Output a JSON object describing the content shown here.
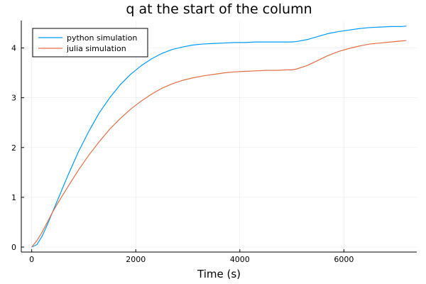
{
  "chart_data": {
    "type": "line",
    "title": "q at the start of the column",
    "xlabel": "Time (s)",
    "ylabel": "",
    "xlim": [
      -200,
      7400
    ],
    "ylim": [
      -0.1,
      4.55
    ],
    "xticks": [
      0,
      2000,
      4000,
      6000
    ],
    "yticks": [
      0,
      1,
      2,
      3,
      4
    ],
    "grid": true,
    "legend_position": "top-left",
    "series": [
      {
        "name": "python simulation",
        "color": "#009af9",
        "x": [
          0,
          100,
          200,
          300,
          400,
          500,
          700,
          900,
          1100,
          1300,
          1500,
          1700,
          1900,
          2100,
          2300,
          2500,
          2700,
          2900,
          3100,
          3300,
          3500,
          3700,
          3900,
          4100,
          4300,
          4500,
          4700,
          4900,
          5000,
          5100,
          5300,
          5500,
          5700,
          5900,
          6100,
          6300,
          6500,
          6700,
          6900,
          7100,
          7200
        ],
        "y": [
          0.0,
          0.05,
          0.22,
          0.45,
          0.7,
          0.95,
          1.45,
          1.92,
          2.33,
          2.7,
          3.0,
          3.26,
          3.47,
          3.64,
          3.78,
          3.89,
          3.97,
          4.02,
          4.06,
          4.08,
          4.09,
          4.1,
          4.11,
          4.11,
          4.12,
          4.12,
          4.12,
          4.12,
          4.12,
          4.13,
          4.17,
          4.23,
          4.29,
          4.33,
          4.36,
          4.39,
          4.41,
          4.42,
          4.43,
          4.43,
          4.44
        ]
      },
      {
        "name": "julia simulation",
        "color": "#e26f46",
        "x": [
          0,
          100,
          200,
          300,
          400,
          500,
          700,
          900,
          1100,
          1300,
          1500,
          1700,
          1900,
          2100,
          2300,
          2500,
          2700,
          2900,
          3100,
          3300,
          3500,
          3700,
          3900,
          4100,
          4300,
          4500,
          4700,
          4900,
          5000,
          5100,
          5300,
          5500,
          5700,
          5900,
          6100,
          6300,
          6500,
          6700,
          6900,
          7100,
          7200
        ],
        "y": [
          0.0,
          0.13,
          0.3,
          0.5,
          0.7,
          0.88,
          1.22,
          1.55,
          1.85,
          2.12,
          2.37,
          2.58,
          2.77,
          2.93,
          3.07,
          3.19,
          3.28,
          3.35,
          3.4,
          3.44,
          3.47,
          3.5,
          3.52,
          3.53,
          3.54,
          3.55,
          3.55,
          3.56,
          3.56,
          3.58,
          3.65,
          3.75,
          3.85,
          3.93,
          3.99,
          4.04,
          4.08,
          4.1,
          4.12,
          4.14,
          4.15
        ]
      }
    ]
  }
}
